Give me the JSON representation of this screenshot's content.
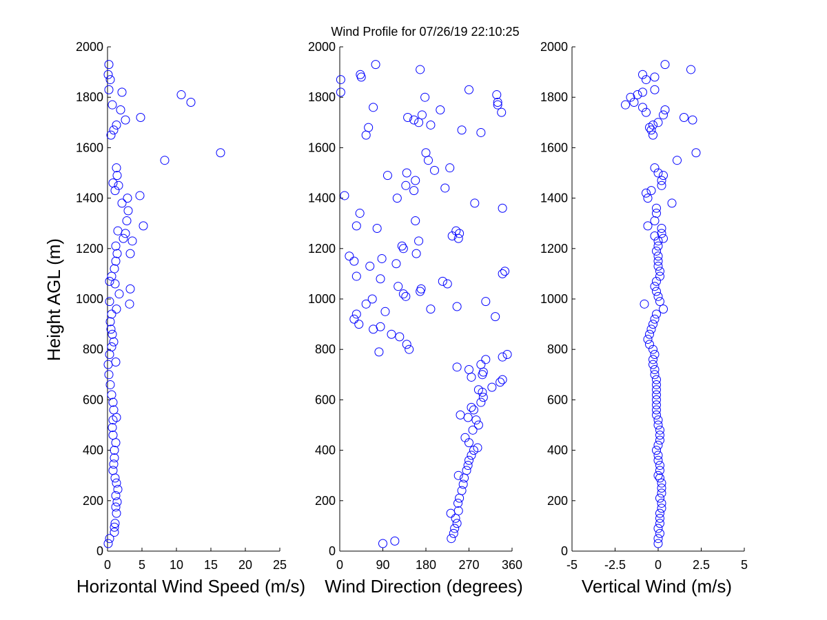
{
  "chart_data": {
    "title": "Wind Profile for  07/26/19 22:10:25",
    "ylabel": "Height AGL (m)",
    "ylim": [
      0,
      2000
    ],
    "yticks": [
      "0",
      "200",
      "400",
      "600",
      "800",
      "1000",
      "1200",
      "1400",
      "1600",
      "1800",
      "2000"
    ],
    "marker_color": "#0000ff",
    "panels": [
      {
        "type": "scatter",
        "xlabel": "Horizontal Wind Speed (m/s)",
        "xlim": [
          0,
          25
        ],
        "xticks": [
          0,
          5,
          10,
          15,
          20,
          25
        ],
        "xtick_labels": [
          "0",
          "5",
          "10",
          "15",
          "20",
          "25"
        ],
        "points": [
          [
            0.1,
            30
          ],
          [
            0.3,
            50
          ],
          [
            1.0,
            75
          ],
          [
            1.0,
            95
          ],
          [
            1.1,
            110
          ],
          [
            1.3,
            150
          ],
          [
            1.2,
            175
          ],
          [
            1.4,
            195
          ],
          [
            1.2,
            220
          ],
          [
            1.5,
            245
          ],
          [
            1.3,
            270
          ],
          [
            1.1,
            290
          ],
          [
            0.8,
            320
          ],
          [
            0.9,
            345
          ],
          [
            1.0,
            370
          ],
          [
            1.0,
            400
          ],
          [
            1.2,
            430
          ],
          [
            0.8,
            460
          ],
          [
            0.7,
            490
          ],
          [
            0.8,
            520
          ],
          [
            1.3,
            530
          ],
          [
            0.9,
            560
          ],
          [
            0.8,
            590
          ],
          [
            0.6,
            620
          ],
          [
            0.4,
            660
          ],
          [
            0.2,
            700
          ],
          [
            0.1,
            740
          ],
          [
            1.2,
            750
          ],
          [
            0.3,
            780
          ],
          [
            0.6,
            810
          ],
          [
            0.9,
            830
          ],
          [
            0.7,
            860
          ],
          [
            0.5,
            880
          ],
          [
            0.4,
            910
          ],
          [
            0.6,
            940
          ],
          [
            1.3,
            960
          ],
          [
            0.3,
            990
          ],
          [
            1.7,
            1020
          ],
          [
            3.2,
            980
          ],
          [
            3.3,
            1040
          ],
          [
            1.1,
            1060
          ],
          [
            0.6,
            1090
          ],
          [
            0.3,
            1070
          ],
          [
            1.0,
            1120
          ],
          [
            1.2,
            1150
          ],
          [
            1.4,
            1180
          ],
          [
            3.3,
            1180
          ],
          [
            1.2,
            1210
          ],
          [
            2.3,
            1240
          ],
          [
            1.5,
            1270
          ],
          [
            3.6,
            1230
          ],
          [
            2.6,
            1260
          ],
          [
            5.2,
            1290
          ],
          [
            3.0,
            1350
          ],
          [
            2.8,
            1310
          ],
          [
            2.1,
            1380
          ],
          [
            2.9,
            1400
          ],
          [
            4.7,
            1410
          ],
          [
            1.1,
            1430
          ],
          [
            0.8,
            1460
          ],
          [
            1.6,
            1450
          ],
          [
            1.4,
            1490
          ],
          [
            1.3,
            1520
          ],
          [
            8.3,
            1550
          ],
          [
            16.4,
            1580
          ],
          [
            0.5,
            1650
          ],
          [
            0.9,
            1670
          ],
          [
            1.3,
            1690
          ],
          [
            2.6,
            1710
          ],
          [
            4.8,
            1720
          ],
          [
            1.9,
            1750
          ],
          [
            0.7,
            1770
          ],
          [
            12.1,
            1780
          ],
          [
            10.7,
            1810
          ],
          [
            2.1,
            1820
          ],
          [
            0.2,
            1830
          ],
          [
            0.4,
            1870
          ],
          [
            0.1,
            1890
          ],
          [
            0.2,
            1930
          ]
        ]
      },
      {
        "type": "scatter",
        "xlabel": "Wind Direction (degrees)",
        "xlim": [
          0,
          360
        ],
        "xticks": [
          0,
          90,
          180,
          270,
          360
        ],
        "xtick_labels": [
          "0",
          "90",
          "180",
          "270",
          "360"
        ],
        "points": [
          [
            90,
            30
          ],
          [
            115,
            40
          ],
          [
            233,
            50
          ],
          [
            238,
            70
          ],
          [
            240,
            90
          ],
          [
            245,
            110
          ],
          [
            242,
            130
          ],
          [
            248,
            160
          ],
          [
            247,
            190
          ],
          [
            250,
            210
          ],
          [
            232,
            150
          ],
          [
            255,
            240
          ],
          [
            258,
            265
          ],
          [
            260,
            290
          ],
          [
            248,
            300
          ],
          [
            265,
            320
          ],
          [
            268,
            340
          ],
          [
            270,
            360
          ],
          [
            275,
            380
          ],
          [
            280,
            400
          ],
          [
            288,
            410
          ],
          [
            270,
            430
          ],
          [
            262,
            450
          ],
          [
            278,
            480
          ],
          [
            290,
            500
          ],
          [
            285,
            520
          ],
          [
            268,
            530
          ],
          [
            252,
            540
          ],
          [
            280,
            560
          ],
          [
            275,
            570
          ],
          [
            295,
            590
          ],
          [
            300,
            610
          ],
          [
            298,
            630
          ],
          [
            290,
            640
          ],
          [
            318,
            650
          ],
          [
            335,
            670
          ],
          [
            340,
            680
          ],
          [
            298,
            700
          ],
          [
            295,
            740
          ],
          [
            305,
            760
          ],
          [
            245,
            730
          ],
          [
            270,
            720
          ],
          [
            275,
            690
          ],
          [
            300,
            710
          ],
          [
            350,
            780
          ],
          [
            340,
            770
          ],
          [
            145,
            800
          ],
          [
            140,
            820
          ],
          [
            125,
            850
          ],
          [
            108,
            860
          ],
          [
            82,
            790
          ],
          [
            70,
            880
          ],
          [
            85,
            890
          ],
          [
            30,
            920
          ],
          [
            40,
            900
          ],
          [
            35,
            940
          ],
          [
            55,
            980
          ],
          [
            68,
            1000
          ],
          [
            95,
            950
          ],
          [
            138,
            1010
          ],
          [
            133,
            1020
          ],
          [
            190,
            960
          ],
          [
            245,
            970
          ],
          [
            305,
            990
          ],
          [
            325,
            930
          ],
          [
            168,
            1030
          ],
          [
            170,
            1040
          ],
          [
            122,
            1050
          ],
          [
            215,
            1070
          ],
          [
            225,
            1060
          ],
          [
            35,
            1090
          ],
          [
            85,
            1080
          ],
          [
            63,
            1130
          ],
          [
            30,
            1150
          ],
          [
            20,
            1170
          ],
          [
            118,
            1140
          ],
          [
            160,
            1180
          ],
          [
            88,
            1160
          ],
          [
            133,
            1200
          ],
          [
            130,
            1210
          ],
          [
            165,
            1230
          ],
          [
            235,
            1250
          ],
          [
            248,
            1240
          ],
          [
            243,
            1270
          ],
          [
            250,
            1260
          ],
          [
            35,
            1290
          ],
          [
            78,
            1280
          ],
          [
            158,
            1310
          ],
          [
            42,
            1340
          ],
          [
            340,
            1360
          ],
          [
            345,
            1110
          ],
          [
            340,
            1100
          ],
          [
            10,
            1410
          ],
          [
            120,
            1400
          ],
          [
            155,
            1430
          ],
          [
            138,
            1450
          ],
          [
            158,
            1470
          ],
          [
            140,
            1500
          ],
          [
            100,
            1490
          ],
          [
            198,
            1510
          ],
          [
            180,
            1580
          ],
          [
            185,
            1550
          ],
          [
            230,
            1520
          ],
          [
            220,
            1440
          ],
          [
            282,
            1380
          ],
          [
            55,
            1650
          ],
          [
            60,
            1680
          ],
          [
            155,
            1710
          ],
          [
            165,
            1700
          ],
          [
            142,
            1720
          ],
          [
            172,
            1730
          ],
          [
            190,
            1690
          ],
          [
            210,
            1750
          ],
          [
            255,
            1670
          ],
          [
            295,
            1660
          ],
          [
            330,
            1770
          ],
          [
            330,
            1780
          ],
          [
            338,
            1740
          ],
          [
            70,
            1760
          ],
          [
            2,
            1820
          ],
          [
            2,
            1870
          ],
          [
            45,
            1880
          ],
          [
            43,
            1890
          ],
          [
            75,
            1930
          ],
          [
            168,
            1910
          ],
          [
            178,
            1800
          ],
          [
            270,
            1830
          ],
          [
            328,
            1810
          ]
        ]
      },
      {
        "type": "scatter",
        "xlabel": "Vertical Wind (m/s)",
        "xlim": [
          -5,
          5
        ],
        "xticks": [
          -5,
          -2.5,
          0,
          2.5,
          5
        ],
        "xtick_labels": [
          "-5",
          "-2.5",
          "0",
          "2.5",
          "5"
        ],
        "points": [
          [
            0.0,
            30
          ],
          [
            0.0,
            50
          ],
          [
            0.1,
            70
          ],
          [
            0.0,
            90
          ],
          [
            0.1,
            110
          ],
          [
            0.1,
            130
          ],
          [
            0.1,
            150
          ],
          [
            0.2,
            170
          ],
          [
            0.2,
            190
          ],
          [
            0.1,
            210
          ],
          [
            0.2,
            230
          ],
          [
            0.2,
            250
          ],
          [
            0.2,
            270
          ],
          [
            0.1,
            290
          ],
          [
            0.0,
            300
          ],
          [
            0.1,
            320
          ],
          [
            0.1,
            340
          ],
          [
            0.0,
            360
          ],
          [
            0.0,
            380
          ],
          [
            -0.1,
            400
          ],
          [
            0.0,
            420
          ],
          [
            0.1,
            440
          ],
          [
            0.1,
            460
          ],
          [
            0.1,
            480
          ],
          [
            0.0,
            500
          ],
          [
            0.0,
            520
          ],
          [
            -0.1,
            540
          ],
          [
            -0.1,
            560
          ],
          [
            -0.1,
            580
          ],
          [
            -0.1,
            600
          ],
          [
            -0.1,
            620
          ],
          [
            -0.1,
            640
          ],
          [
            -0.1,
            660
          ],
          [
            -0.1,
            680
          ],
          [
            -0.2,
            700
          ],
          [
            -0.2,
            720
          ],
          [
            -0.3,
            740
          ],
          [
            -0.3,
            760
          ],
          [
            -0.2,
            780
          ],
          [
            -0.3,
            800
          ],
          [
            -0.5,
            820
          ],
          [
            -0.6,
            840
          ],
          [
            -0.5,
            860
          ],
          [
            -0.4,
            880
          ],
          [
            -0.3,
            900
          ],
          [
            -0.2,
            920
          ],
          [
            -0.1,
            940
          ],
          [
            0.3,
            960
          ],
          [
            -0.8,
            980
          ],
          [
            0.1,
            990
          ],
          [
            0.0,
            1010
          ],
          [
            -0.1,
            1030
          ],
          [
            -0.2,
            1050
          ],
          [
            -0.1,
            1070
          ],
          [
            0.1,
            1090
          ],
          [
            0.1,
            1110
          ],
          [
            0.0,
            1130
          ],
          [
            0.0,
            1150
          ],
          [
            0.0,
            1170
          ],
          [
            -0.1,
            1190
          ],
          [
            0.0,
            1210
          ],
          [
            0.0,
            1230
          ],
          [
            0.3,
            1240
          ],
          [
            0.2,
            1260
          ],
          [
            0.2,
            1280
          ],
          [
            -0.2,
            1250
          ],
          [
            -0.6,
            1290
          ],
          [
            -0.2,
            1310
          ],
          [
            -0.1,
            1340
          ],
          [
            -0.1,
            1360
          ],
          [
            0.8,
            1380
          ],
          [
            -0.6,
            1400
          ],
          [
            -0.7,
            1420
          ],
          [
            -0.4,
            1430
          ],
          [
            0.2,
            1450
          ],
          [
            0.2,
            1470
          ],
          [
            0.3,
            1490
          ],
          [
            0.0,
            1500
          ],
          [
            -0.2,
            1520
          ],
          [
            1.1,
            1550
          ],
          [
            2.2,
            1580
          ],
          [
            -0.3,
            1650
          ],
          [
            -0.4,
            1670
          ],
          [
            -0.5,
            1680
          ],
          [
            -0.3,
            1690
          ],
          [
            0.0,
            1700
          ],
          [
            0.3,
            1730
          ],
          [
            0.4,
            1750
          ],
          [
            -0.7,
            1740
          ],
          [
            2.0,
            1710
          ],
          [
            1.5,
            1720
          ],
          [
            -0.9,
            1760
          ],
          [
            -1.9,
            1770
          ],
          [
            -1.4,
            1780
          ],
          [
            -1.6,
            1800
          ],
          [
            -0.9,
            1820
          ],
          [
            -1.2,
            1810
          ],
          [
            -0.2,
            1830
          ],
          [
            -0.7,
            1870
          ],
          [
            -0.2,
            1880
          ],
          [
            -0.9,
            1890
          ],
          [
            0.4,
            1930
          ],
          [
            1.9,
            1910
          ]
        ]
      }
    ]
  }
}
